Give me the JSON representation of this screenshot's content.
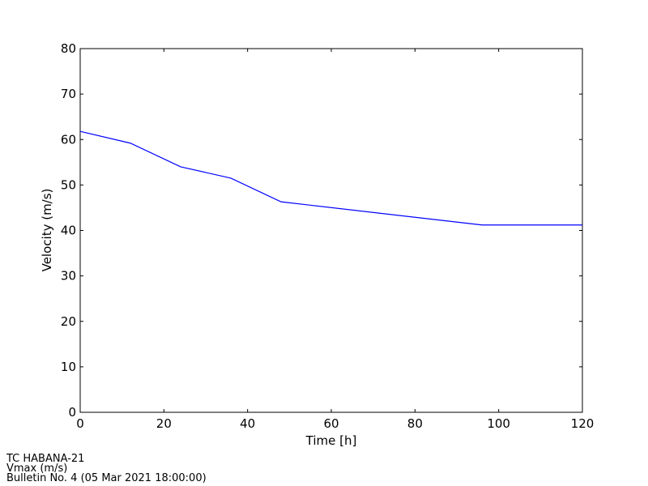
{
  "chart_data": {
    "type": "line",
    "xlabel": "Time [h]",
    "ylabel": "Velocity (m/s)",
    "x": [
      0,
      12,
      24,
      36,
      48,
      96,
      120
    ],
    "series": [
      {
        "color": "#0000ff",
        "values": [
          61.8,
          59.2,
          54.0,
          51.5,
          46.3,
          41.2,
          41.2
        ]
      }
    ],
    "xlim": [
      0,
      120
    ],
    "xticks": [
      0,
      20,
      40,
      60,
      80,
      100,
      120
    ],
    "ylim": [
      0,
      80
    ],
    "yticks": [
      0,
      10,
      20,
      30,
      40,
      50,
      60,
      70,
      80
    ],
    "footer": [
      "TC HABANA-21",
      "Vmax (m/s)",
      "Bulletin No. 4 (05 Mar 2021  18:00:00)"
    ]
  }
}
